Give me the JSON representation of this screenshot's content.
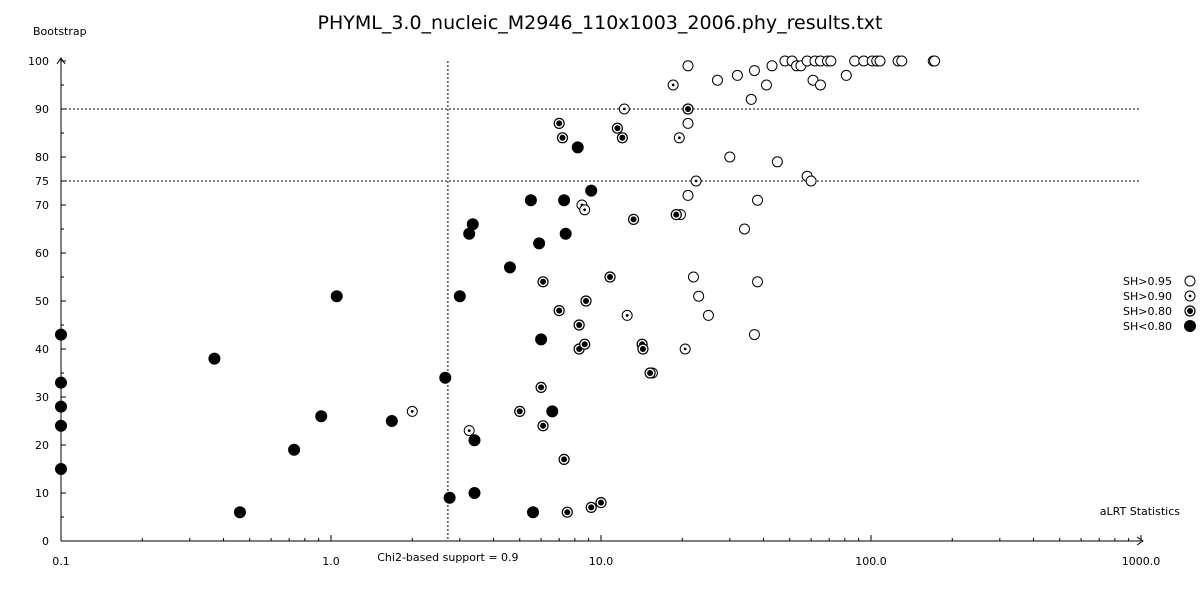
{
  "chart_data": {
    "type": "scatter",
    "title": "PHYML_3.0_nucleic_M2946_110x1003_2006.phy_results.txt",
    "xlabel": "aLRT Statistics",
    "ylabel": "Bootstrap",
    "x_scale": "log",
    "xlim": [
      0.1,
      1000.0
    ],
    "ylim": [
      0,
      100
    ],
    "x_tick_labels": [
      "0.1",
      "1.0",
      "10.0",
      "100.0",
      "1000.0"
    ],
    "y_tick_labels": [
      "0",
      "10",
      "20",
      "30",
      "40",
      "50",
      "60",
      "70",
      "75",
      "80",
      "90",
      "100"
    ],
    "grid": false,
    "legend_position": "right",
    "reference_lines": [
      {
        "orientation": "horizontal",
        "value": 90,
        "style": "dotted"
      },
      {
        "orientation": "horizontal",
        "value": 75,
        "style": "dotted"
      },
      {
        "orientation": "vertical",
        "value": 2.71,
        "style": "dotted",
        "label": "Chi2-based support = 0.9"
      }
    ],
    "series": [
      {
        "name": "SH>0.95",
        "marker": "open-circle",
        "points": [
          [
            21,
            99
          ],
          [
            27,
            96
          ],
          [
            32,
            97
          ],
          [
            37,
            98
          ],
          [
            43,
            99
          ],
          [
            48,
            100
          ],
          [
            51,
            100
          ],
          [
            53,
            99
          ],
          [
            55,
            99
          ],
          [
            58,
            100
          ],
          [
            62,
            100
          ],
          [
            65,
            100
          ],
          [
            69,
            100
          ],
          [
            71,
            100
          ],
          [
            87,
            100
          ],
          [
            94,
            100
          ],
          [
            101,
            100
          ],
          [
            105,
            100
          ],
          [
            108,
            100
          ],
          [
            126,
            100
          ],
          [
            130,
            100
          ],
          [
            170,
            100
          ],
          [
            172,
            100
          ],
          [
            81,
            97
          ],
          [
            61,
            96
          ],
          [
            65,
            95
          ],
          [
            41,
            95
          ],
          [
            36,
            92
          ],
          [
            21,
            87
          ],
          [
            30,
            80
          ],
          [
            45,
            79
          ],
          [
            58,
            76
          ],
          [
            60,
            75
          ],
          [
            21,
            72
          ],
          [
            38,
            71
          ],
          [
            34,
            65
          ],
          [
            22,
            55
          ],
          [
            38,
            54
          ],
          [
            23,
            51
          ],
          [
            25,
            47
          ],
          [
            37,
            43
          ]
        ]
      },
      {
        "name": "SH>0.90",
        "marker": "open-circle-dot",
        "points": [
          [
            18.5,
            95
          ],
          [
            12.2,
            90
          ],
          [
            19.5,
            84
          ],
          [
            22.5,
            75
          ],
          [
            8.5,
            70
          ],
          [
            8.7,
            69
          ],
          [
            19.7,
            68
          ],
          [
            12.5,
            47
          ],
          [
            2.0,
            27
          ],
          [
            3.25,
            23
          ],
          [
            20.5,
            40
          ],
          [
            15.5,
            35
          ]
        ]
      },
      {
        "name": "SH>0.80",
        "marker": "ringed-dot",
        "points": [
          [
            21,
            90
          ],
          [
            7.0,
            87
          ],
          [
            11.5,
            86
          ],
          [
            7.2,
            84
          ],
          [
            12.0,
            84
          ],
          [
            19,
            68
          ],
          [
            13.2,
            67
          ],
          [
            6.1,
            54
          ],
          [
            10.8,
            55
          ],
          [
            8.8,
            50
          ],
          [
            7.0,
            48
          ],
          [
            8.3,
            45
          ],
          [
            8.3,
            40
          ],
          [
            8.7,
            41
          ],
          [
            14.2,
            41
          ],
          [
            14.3,
            40
          ],
          [
            15.2,
            35
          ],
          [
            6.0,
            32
          ],
          [
            5.0,
            27
          ],
          [
            6.1,
            24
          ],
          [
            7.3,
            17
          ],
          [
            9.2,
            7
          ],
          [
            10.0,
            8
          ],
          [
            7.5,
            6
          ]
        ]
      },
      {
        "name": "SH<0.80",
        "marker": "filled-circle",
        "points": [
          [
            8.2,
            82
          ],
          [
            9.2,
            73
          ],
          [
            5.5,
            71
          ],
          [
            7.3,
            71
          ],
          [
            3.35,
            66
          ],
          [
            3.25,
            64
          ],
          [
            7.4,
            64
          ],
          [
            5.9,
            62
          ],
          [
            4.6,
            57
          ],
          [
            1.05,
            51
          ],
          [
            3.0,
            51
          ],
          [
            0.1,
            43
          ],
          [
            6.0,
            42
          ],
          [
            0.37,
            38
          ],
          [
            2.65,
            34
          ],
          [
            0.1,
            33
          ],
          [
            0.1,
            28
          ],
          [
            0.92,
            26
          ],
          [
            1.68,
            25
          ],
          [
            6.6,
            27
          ],
          [
            0.1,
            24
          ],
          [
            3.4,
            21
          ],
          [
            0.73,
            19
          ],
          [
            0.1,
            15
          ],
          [
            3.4,
            10
          ],
          [
            2.75,
            9
          ],
          [
            0.46,
            6
          ],
          [
            5.6,
            6
          ]
        ]
      }
    ]
  }
}
